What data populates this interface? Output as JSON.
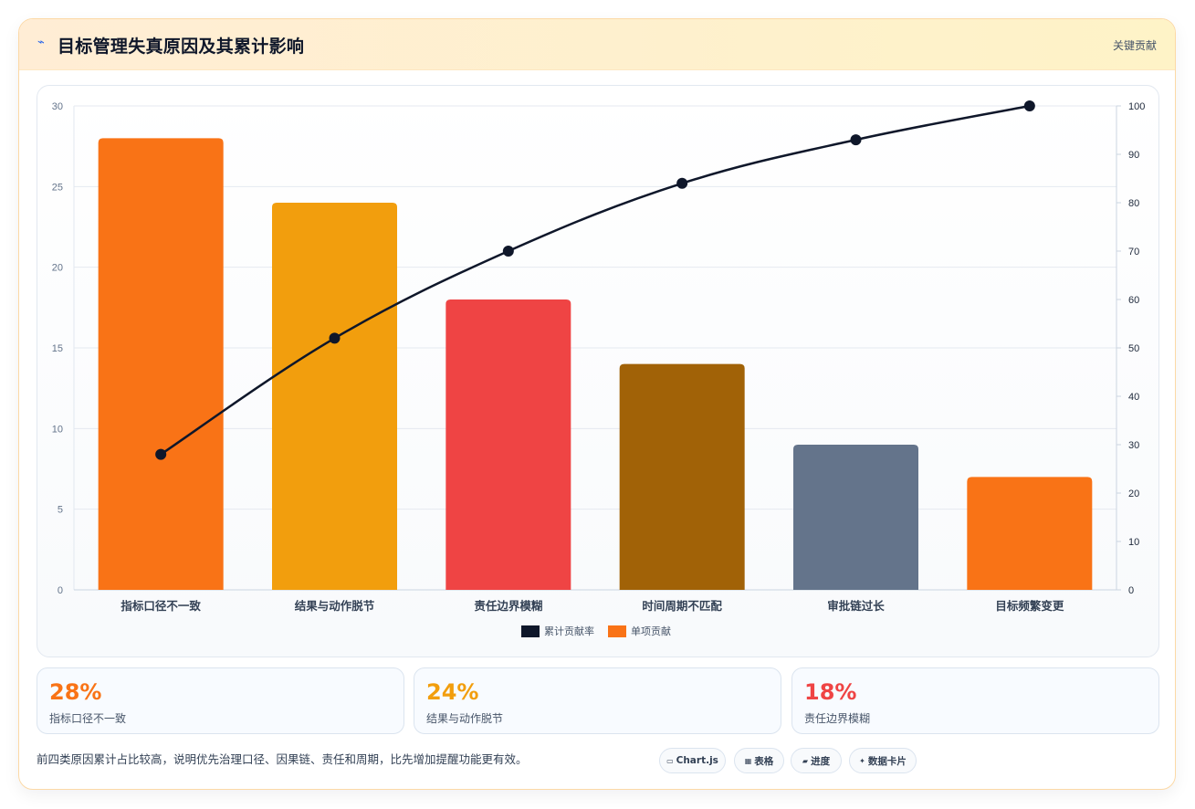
{
  "header": {
    "icon": "chart-icon",
    "title": "目标管理失真原因及其累计影响",
    "tag": "关键贡献"
  },
  "chart_data": {
    "type": "bar",
    "categories": [
      "指标口径不一致",
      "结果与动作脱节",
      "责任边界模糊",
      "时间周期不匹配",
      "审批链过长",
      "目标频繁变更"
    ],
    "series": [
      {
        "name": "单项贡献",
        "type": "bar",
        "axis": "left",
        "values": [
          28,
          24,
          18,
          14,
          9,
          7
        ],
        "colors": [
          "#f97316",
          "#f29e0d",
          "#ef4444",
          "#a16207",
          "#64748b",
          "#f97316"
        ]
      },
      {
        "name": "累计贡献率",
        "type": "line",
        "axis": "right",
        "values": [
          28,
          52,
          70,
          84,
          93,
          100
        ],
        "color": "#0f172a"
      }
    ],
    "ylim": [
      0,
      30
    ],
    "yticks": [
      "0",
      "5",
      "10",
      "15",
      "20",
      "25",
      "30"
    ],
    "y2lim": [
      0,
      100
    ],
    "y2ticks": [
      "0",
      "10",
      "20",
      "30",
      "40",
      "50",
      "60",
      "70",
      "80",
      "90",
      "100"
    ],
    "legend": [
      "累计贡献率",
      "单项贡献"
    ],
    "legend_position": "bottom",
    "grid": true
  },
  "stats": [
    {
      "value": "28%",
      "label": "指标口径不一致",
      "color": "#f97316"
    },
    {
      "value": "24%",
      "label": "结果与动作脱节",
      "color": "#f29e0d"
    },
    {
      "value": "18%",
      "label": "责任边界模糊",
      "color": "#ef4444"
    }
  ],
  "footer": {
    "note": "前四类原因累计占比较高，说明优先治理口径、因果链、责任和周期，比先增加提醒功能更有效。"
  },
  "chips": [
    {
      "icon": "monitor-icon",
      "glyph": "▭",
      "label": "Chart.js"
    },
    {
      "icon": "table-icon",
      "glyph": "▦",
      "label": "表格"
    },
    {
      "icon": "progress-icon",
      "glyph": "▰",
      "label": "进度"
    },
    {
      "icon": "sparkle-icon",
      "glyph": "✦",
      "label": "数据卡片"
    }
  ]
}
